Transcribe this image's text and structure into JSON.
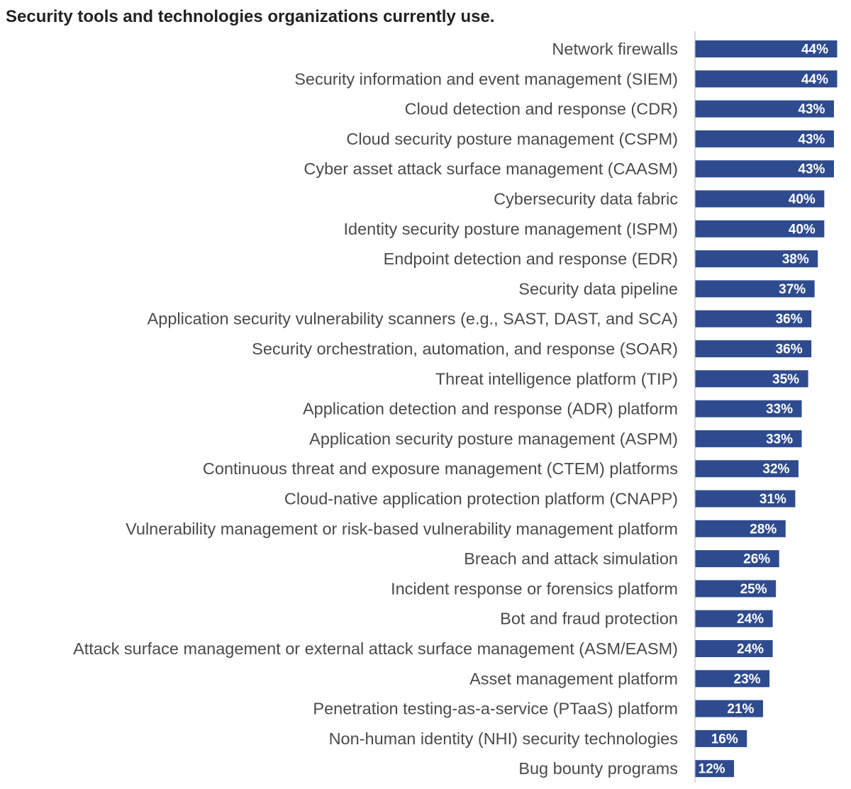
{
  "chart_data": {
    "type": "bar",
    "orientation": "horizontal",
    "title": "Security tools and technologies organizations currently use.",
    "xlabel": "",
    "ylabel": "",
    "xlim": [
      0,
      44
    ],
    "grid": false,
    "bar_color": "#2f4b8f",
    "axis_color": "#cccccc",
    "categories": [
      "Network firewalls",
      "Security information and event management (SIEM)",
      "Cloud detection and response (CDR)",
      "Cloud security posture management (CSPM)",
      "Cyber asset attack surface management (CAASM)",
      "Cybersecurity data fabric",
      "Identity security posture management (ISPM)",
      "Endpoint detection and response (EDR)",
      "Security data pipeline",
      "Application security vulnerability scanners (e.g., SAST, DAST, and SCA)",
      "Security orchestration, automation, and response (SOAR)",
      "Threat intelligence platform (TIP)",
      "Application detection and response (ADR) platform ",
      "Application security posture management (ASPM)",
      "Continuous threat and exposure management (CTEM) platforms",
      "Cloud-native application protection platform (CNAPP)",
      "Vulnerability management or risk-based vulnerability management platform ",
      "Breach and attack simulation",
      "Incident response or forensics platform",
      "Bot and fraud protection",
      "Attack surface management or external attack surface management (ASM/EASM)",
      "Asset management platform",
      "Penetration testing-as-a-service (PTaaS) platform",
      "Non-human identity (NHI) security technologies ",
      "Bug bounty programs"
    ],
    "values": [
      44,
      44,
      43,
      43,
      43,
      40,
      40,
      38,
      37,
      36,
      36,
      35,
      33,
      33,
      32,
      31,
      28,
      26,
      25,
      24,
      24,
      23,
      21,
      16,
      12
    ],
    "value_labels": [
      "44%",
      "44%",
      "43%",
      "43%",
      "43%",
      "40%",
      "40%",
      "38%",
      "37%",
      "36%",
      "36%",
      "35%",
      "33%",
      "33%",
      "32%",
      "31%",
      "28%",
      "26%",
      "25%",
      "24%",
      "24%",
      "23%",
      "21%",
      "16%",
      "12%"
    ]
  }
}
